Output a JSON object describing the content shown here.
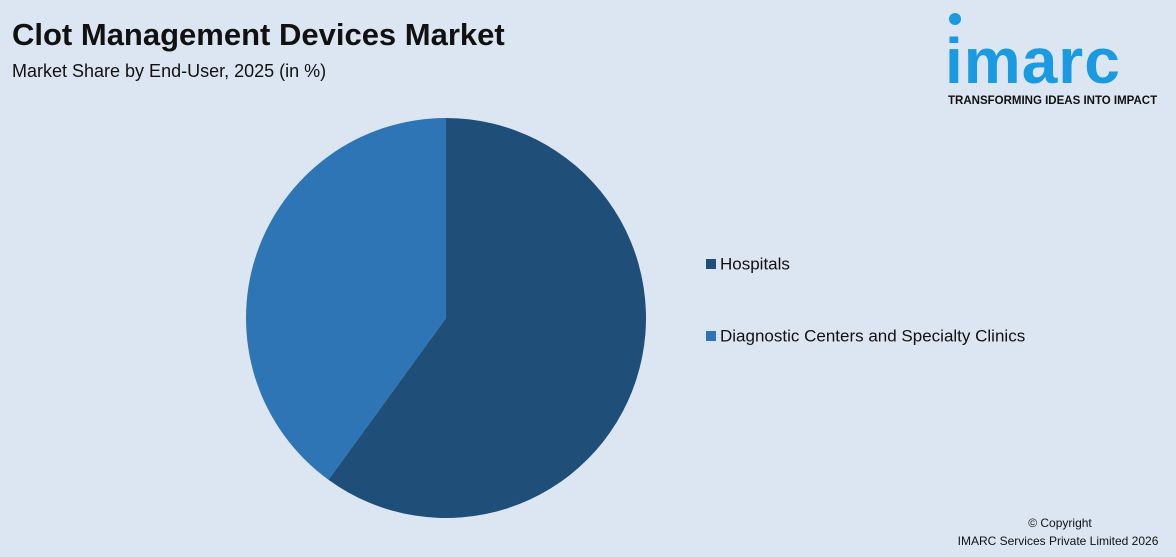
{
  "chart_data": {
    "type": "pie",
    "title": "Clot Management Devices Market",
    "subtitle": "Market Share by End-User, 2025 (in %)",
    "categories": [
      "Hospitals",
      "Diagnostic Centers and Specialty Clinics"
    ],
    "values": [
      60,
      40
    ],
    "colors": [
      "#1f4e79",
      "#2e75b6"
    ],
    "legend": "right"
  },
  "logo": {
    "name": "imarc",
    "tagline": "TRANSFORMING IDEAS INTO IMPACT"
  },
  "footer": [
    "© Copyright",
    "IMARC Services Private Limited 2026"
  ]
}
